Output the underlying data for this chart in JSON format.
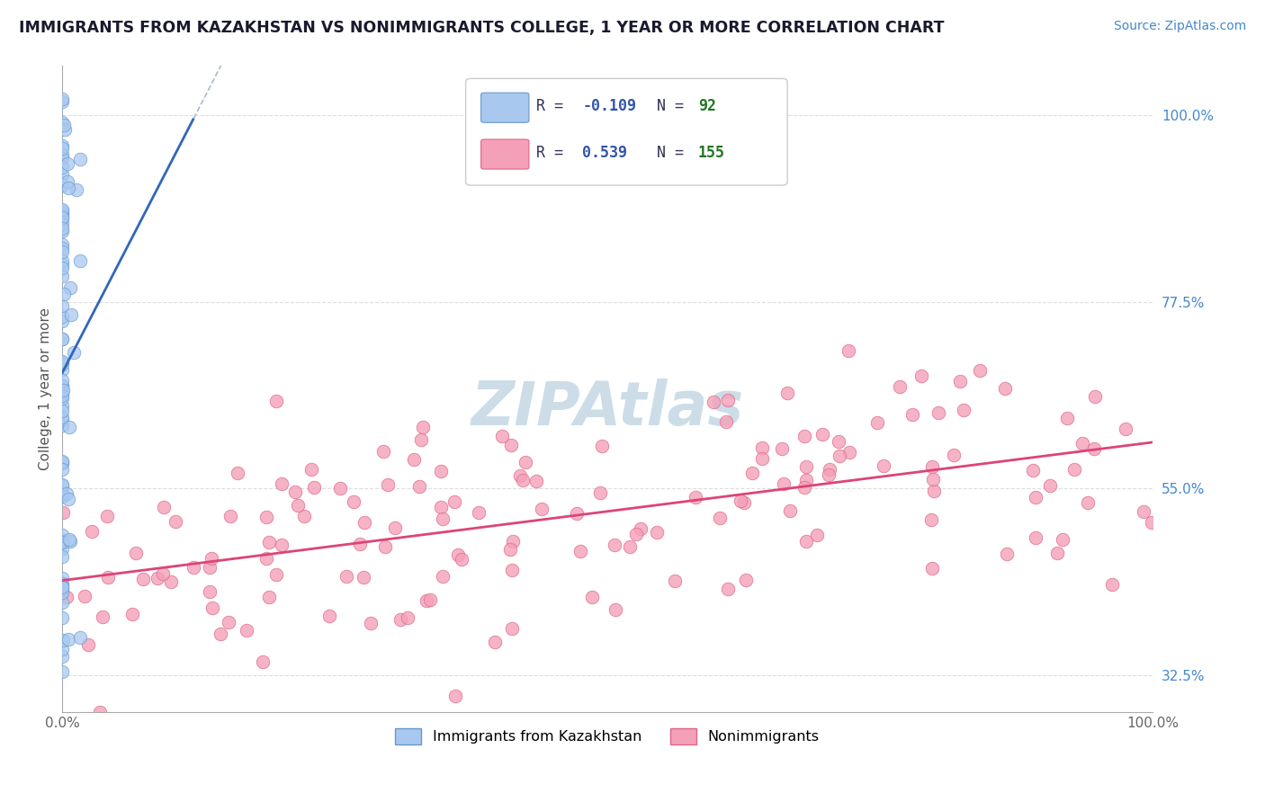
{
  "title": "IMMIGRANTS FROM KAZAKHSTAN VS NONIMMIGRANTS COLLEGE, 1 YEAR OR MORE CORRELATION CHART",
  "source_text": "Source: ZipAtlas.com",
  "ylabel": "College, 1 year or more",
  "xlim": [
    0,
    1
  ],
  "ylim": [
    0.28,
    1.06
  ],
  "y_tick_values_right": [
    0.325,
    0.55,
    0.775,
    1.0
  ],
  "y_tick_labels_right": [
    "32.5%",
    "55.0%",
    "77.5%",
    "100.0%"
  ],
  "blue_color": "#a8c8f0",
  "blue_edge": "#6699cc",
  "blue_trend_color": "#3366bb",
  "pink_color": "#f4a0b8",
  "pink_edge": "#dd6688",
  "pink_trend_color": "#dd4477",
  "dashed_color": "#aabbcc",
  "legend_R_color": "#3355aa",
  "legend_N_color": "#227722",
  "watermark_color": "#ccdde8",
  "background_color": "#ffffff",
  "grid_color": "#dddddd",
  "axis_color": "#aaaaaa",
  "blue_R": -0.109,
  "blue_N": 92,
  "pink_R": 0.539,
  "pink_N": 155
}
